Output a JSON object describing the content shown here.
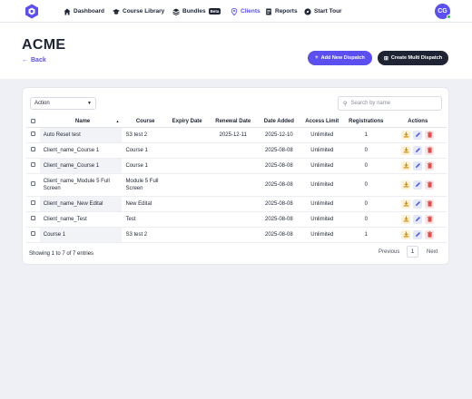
{
  "nav": {
    "items": [
      {
        "label": "Dashboard",
        "icon": "home-icon"
      },
      {
        "label": "Course Library",
        "icon": "graduation-cap-icon"
      },
      {
        "label": "Bundles",
        "icon": "layers-icon",
        "badge": "Beta"
      },
      {
        "label": "Clients",
        "icon": "location-pin-icon",
        "active": true
      },
      {
        "label": "Reports",
        "icon": "report-icon"
      },
      {
        "label": "Start Tour",
        "icon": "tour-icon"
      }
    ],
    "avatar": "CG"
  },
  "header": {
    "title": "ACME",
    "back": "Back",
    "add_dispatch": "Add New Dispatch",
    "multi_dispatch": "Create Multi Dispatch"
  },
  "toolbar": {
    "action": "Action",
    "search_placeholder": "Search by name"
  },
  "table": {
    "headers": [
      "Name",
      "Course",
      "Expiry Date",
      "Renewal Date",
      "Date Added",
      "Access Limit",
      "Registrations",
      "Actions"
    ],
    "rows": [
      {
        "name": "Auto Reset test",
        "course": "S3 test 2",
        "expiry": "",
        "renewal": "2025-12-11",
        "added": "2025-12-10",
        "access": "Unlimited",
        "reg": "1"
      },
      {
        "name": "Client_name_Course 1",
        "course": "Course 1",
        "expiry": "",
        "renewal": "",
        "added": "2025-08-08",
        "access": "Unlimited",
        "reg": "0"
      },
      {
        "name": "Client_name_Course 1",
        "course": "Course 1",
        "expiry": "",
        "renewal": "",
        "added": "2025-08-08",
        "access": "Unlimited",
        "reg": "0"
      },
      {
        "name": "Client_name_Module 5 Full Screen",
        "course": "Module 5 Full Screen",
        "expiry": "",
        "renewal": "",
        "added": "2025-08-08",
        "access": "Unlimited",
        "reg": "0"
      },
      {
        "name": "Client_name_New Edital",
        "course": "New Edital",
        "expiry": "",
        "renewal": "",
        "added": "2025-08-08",
        "access": "Unlimited",
        "reg": "0"
      },
      {
        "name": "Client_name_Test",
        "course": "Test",
        "expiry": "",
        "renewal": "",
        "added": "2025-08-08",
        "access": "Unlimited",
        "reg": "0"
      },
      {
        "name": "Course 1",
        "course": "S3 test 2",
        "expiry": "",
        "renewal": "",
        "added": "2025-08-08",
        "access": "Unlimited",
        "reg": "1"
      }
    ]
  },
  "footer": {
    "showing": "Showing 1 to 7 of 7 entries",
    "previous": "Previous",
    "page": "1",
    "next": "Next"
  },
  "colors": {
    "accent": "#5b4ff0",
    "dark": "#1e2433",
    "download": "#d48a00",
    "edit": "#4b5ae0",
    "delete": "#e04b4b"
  }
}
